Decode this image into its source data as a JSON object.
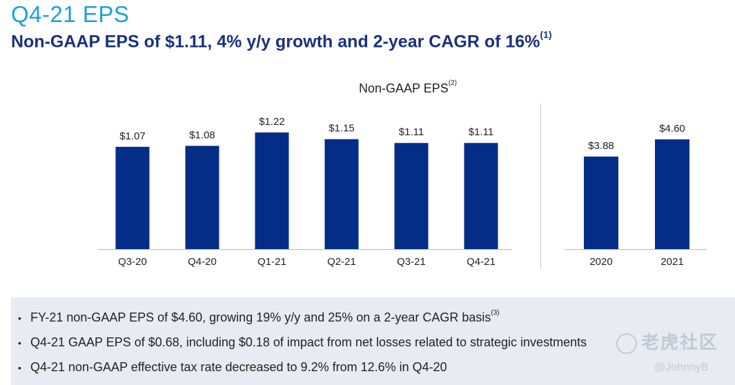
{
  "header": {
    "title": "Q4-21 EPS",
    "subtitle": "Non-GAAP EPS of $1.11, 4% y/y growth and 2-year CAGR of 16%",
    "subtitle_footnote": "(1)"
  },
  "chart_data": [
    {
      "type": "bar",
      "title": "Non-GAAP EPS",
      "title_footnote": "(2)",
      "categories": [
        "Q3-20",
        "Q4-20",
        "Q1-21",
        "Q2-21",
        "Q3-21",
        "Q4-21"
      ],
      "values": [
        1.07,
        1.08,
        1.22,
        1.15,
        1.11,
        1.11
      ],
      "labels": [
        "$1.07",
        "$1.08",
        "$1.22",
        "$1.15",
        "$1.11",
        "$1.11"
      ],
      "ylim": [
        0,
        1.22
      ],
      "color": "#032d87",
      "grid": false
    },
    {
      "type": "bar",
      "categories": [
        "2020",
        "2021"
      ],
      "values": [
        3.88,
        4.6
      ],
      "labels": [
        "$3.88",
        "$4.60"
      ],
      "ylim": [
        0,
        4.6
      ],
      "color": "#032d87",
      "grid": false
    }
  ],
  "notes": {
    "items": [
      {
        "text": "FY-21 non-GAAP EPS of $4.60, growing 19% y/y and 25% on a 2-year CAGR basis",
        "footnote": "(3)"
      },
      {
        "text": "Q4-21 GAAP EPS of $0.68, including $0.18 of impact from net losses related to strategic investments",
        "footnote": ""
      },
      {
        "text": "Q4-21 non-GAAP effective tax rate decreased to 9.2% from 12.6% in Q4-20",
        "footnote": ""
      }
    ],
    "bullet": "•"
  },
  "watermark": {
    "text": "老虎社区",
    "handle": "@JohnnyB"
  },
  "colors": {
    "title": "#1aa0dc",
    "subtitle": "#19327d",
    "bar": "#032d87",
    "panel": "#e8ebf2"
  }
}
